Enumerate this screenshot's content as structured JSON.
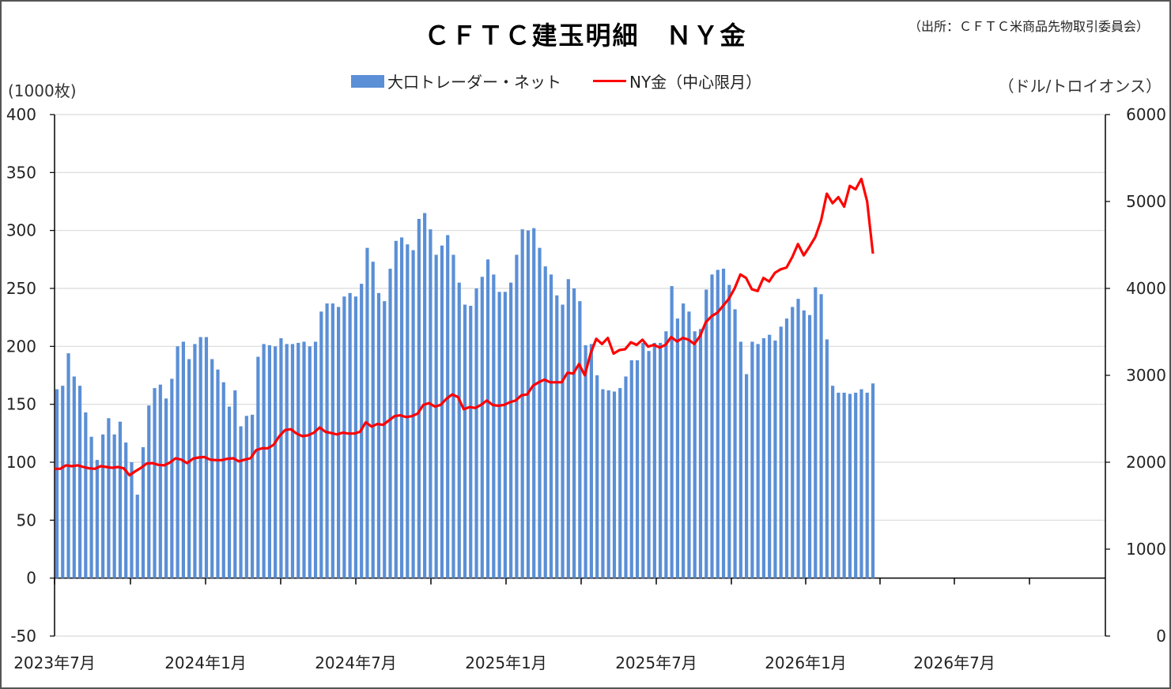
{
  "title": "ＣＦＴＣ建玉明細　ＮＹ金",
  "source": "（出所：ＣＦＴＣ米商品先物取引委員会）",
  "left_axis_unit": "(1000枚)",
  "right_axis_unit": "（ドル/トロイオンス）",
  "legend": [
    {
      "label": "大口トレーダー・ネット",
      "type": "bar",
      "color": "#5b8fd6"
    },
    {
      "label": "NY金（中心限月）",
      "type": "line",
      "color": "#ff0000"
    }
  ],
  "chart_data": {
    "type": "bar+line",
    "title": "ＣＦＴＣ建玉明細　ＮＹ金",
    "xlabel": "",
    "ylabel": "(1000枚)",
    "y2label": "（ドル/トロイオンス）",
    "ylim": [
      -50,
      400
    ],
    "y2lim": [
      0,
      6000
    ],
    "yticks": [
      -50,
      0,
      50,
      100,
      150,
      200,
      250,
      300,
      350,
      400
    ],
    "y2ticks": [
      0,
      1000,
      2000,
      3000,
      4000,
      5000,
      6000
    ],
    "xtick_labels": [
      "2023年7月",
      "2024年1月",
      "2024年7月",
      "2025年1月",
      "2025年7月",
      "2026年1月",
      "2026年7月"
    ],
    "grid": true,
    "legend_position": "top",
    "frequency": "weekly",
    "series": [
      {
        "name": "大口トレーダー・ネット",
        "axis": "left",
        "type": "bar",
        "color": "#5b8fd6",
        "values": [
          163,
          166,
          194,
          174,
          166,
          143,
          122,
          102,
          124,
          138,
          124,
          135,
          117,
          100,
          72,
          113,
          149,
          164,
          167,
          155,
          172,
          200,
          204,
          189,
          202,
          208,
          208,
          189,
          180,
          169,
          148,
          162,
          131,
          140,
          141,
          191,
          202,
          201,
          200,
          207,
          202,
          202,
          203,
          204,
          200,
          204,
          230,
          237,
          237,
          234,
          243,
          246,
          243,
          254,
          285,
          273,
          246,
          239,
          267,
          291,
          294,
          288,
          283,
          310,
          315,
          301,
          279,
          287,
          296,
          279,
          255,
          236,
          235,
          250,
          260,
          275,
          262,
          247,
          247,
          255,
          279,
          301,
          300,
          302,
          285,
          269,
          262,
          244,
          236,
          258,
          250,
          239,
          201,
          202,
          175,
          163,
          162,
          161,
          164,
          174,
          188,
          188,
          203,
          196,
          203,
          203,
          213,
          252,
          224,
          237,
          230,
          213,
          215,
          249,
          262,
          266,
          267,
          253,
          232,
          204,
          176,
          204,
          202,
          207,
          210,
          205,
          217,
          224,
          234,
          241,
          231,
          227,
          251,
          245,
          206,
          166,
          160,
          160,
          159,
          160,
          163,
          160,
          168
        ]
      },
      {
        "name": "NY金（中心限月）",
        "axis": "right",
        "type": "line",
        "color": "#ff0000",
        "values": [
          1925,
          1925,
          1965,
          1955,
          1965,
          1945,
          1930,
          1925,
          1955,
          1945,
          1935,
          1945,
          1930,
          1850,
          1895,
          1935,
          1985,
          1990,
          1970,
          1965,
          1995,
          2045,
          2030,
          1990,
          2040,
          2055,
          2060,
          2030,
          2025,
          2025,
          2040,
          2045,
          2010,
          2030,
          2045,
          2140,
          2160,
          2160,
          2200,
          2300,
          2370,
          2380,
          2330,
          2300,
          2310,
          2340,
          2400,
          2350,
          2335,
          2320,
          2340,
          2330,
          2330,
          2350,
          2460,
          2410,
          2440,
          2430,
          2480,
          2530,
          2540,
          2520,
          2530,
          2560,
          2660,
          2680,
          2640,
          2660,
          2730,
          2780,
          2750,
          2610,
          2635,
          2625,
          2660,
          2710,
          2660,
          2650,
          2660,
          2690,
          2710,
          2770,
          2780,
          2880,
          2920,
          2950,
          2920,
          2920,
          2920,
          3030,
          3020,
          3130,
          3000,
          3250,
          3420,
          3360,
          3430,
          3250,
          3290,
          3300,
          3380,
          3350,
          3410,
          3330,
          3350,
          3320,
          3350,
          3440,
          3390,
          3430,
          3410,
          3360,
          3450,
          3610,
          3680,
          3720,
          3800,
          3880,
          4000,
          4160,
          4120,
          3990,
          3970,
          4120,
          4080,
          4180,
          4220,
          4240,
          4360,
          4510,
          4380,
          4480,
          4590,
          4780,
          5090,
          4980,
          5050,
          4940,
          5180,
          5140,
          5260,
          5000,
          4400
        ]
      }
    ]
  }
}
